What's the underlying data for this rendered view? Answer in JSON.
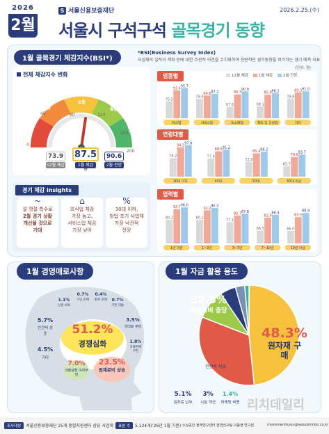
{
  "header": {
    "year": "2026",
    "month": "2월",
    "logo": "서울신용보증재단",
    "date": "2026.2.25.(수)",
    "title_a": "서울시 구석구석",
    "title_b": "골목경기 동향"
  },
  "bsi": {
    "panel_title": "1월 골목경기 체감지수(BSI*)",
    "note_title": "*BSI(Business Survey Index)",
    "note_text": "사업체의 실적과 계획 등에 대한 주관적 의견을 수치화하여 전반적인 경기동향을 파악하는 경기 예측 지표",
    "gauge_title": "전체 체감지수 변화",
    "gauge_labels": [
      "악화",
      "나쁨",
      "보통",
      "좋음",
      "매우좋음",
      "매우 나쁨"
    ],
    "ticks": [
      "0",
      "40",
      "80",
      "120",
      "160",
      "200"
    ],
    "dec_value": "73.9",
    "dec_label": "12월 체감",
    "jan_value": "87.5",
    "jan_label": "1월 체감",
    "feb_value": "90.6",
    "feb_label": "2월 전망",
    "jan_unit": "점"
  },
  "insights": {
    "title": "경기 체감 insights",
    "items": [
      {
        "icon": "~",
        "text1": "설 명절 특수로",
        "text2": "2월 경기 상황",
        "text3": "개선될 것으로",
        "text4": "기대"
      },
      {
        "icon": "⌂",
        "text1": "외식업 체감",
        "text2": "가장 높고,",
        "text3": "서비스업 체감",
        "text4": "가장 낮아"
      },
      {
        "icon": "%",
        "text1": "30대 이하,",
        "text2": "창업 초기 사업체",
        "text3": "가장 낙관적",
        "text4": "전망"
      }
    ]
  },
  "chart_data": [
    {
      "type": "bar",
      "title": "업종별",
      "ylabel": "(단위: 점)",
      "legend": [
        "12월 체감",
        "1월 체감",
        "2월 전망"
      ],
      "categories": [
        "외식업",
        "서비스업",
        "도소매업",
        "제조 및 건설업",
        "기타"
      ],
      "series": [
        {
          "name": "12월 체감",
          "values": [
            75.5,
            79.6,
            67.5,
            68.1,
            79.8
          ]
        },
        {
          "name": "1월 체감",
          "values": [
            92.4,
            84.6,
            86.3,
            85.8,
            89.3
          ]
        },
        {
          "name": "2월 전망",
          "values": [
            95.7,
            87.2,
            90.9,
            88.2,
            91.0
          ]
        }
      ]
    },
    {
      "type": "bar",
      "title": "연령대별",
      "categories": [
        "30대 이하",
        "40대",
        "50대",
        "60대 이상"
      ],
      "series": [
        {
          "name": "12월 체감",
          "values": [
            78.2,
            77.6,
            72.9,
            65.7
          ]
        },
        {
          "name": "1월 체감",
          "values": [
            94.5,
            88.6,
            85.4,
            79.9
          ]
        },
        {
          "name": "2월 전망",
          "values": [
            97.8,
            91.2,
            88.2,
            83.7
          ]
        }
      ]
    },
    {
      "type": "bar",
      "title": "업력별",
      "categories": [
        "1년 미만",
        "1~3년",
        "3~7년",
        "7~10년",
        "10년 이상"
      ],
      "series": [
        {
          "name": "12월 체감",
          "values": [
            80.2,
            80.1,
            77.1,
            66.5,
            66.0
          ]
        },
        {
          "name": "1월 체감",
          "values": [
            93.7,
            92.2,
            85.7,
            82.9,
            83.5
          ]
        },
        {
          "name": "2월 전망",
          "values": [
            96.0,
            95.3,
            87.8,
            86.4,
            88.9
          ]
        }
      ]
    },
    {
      "type": "pie",
      "title": "1월 자금 활용 용도",
      "categories": [
        "원자재 구매",
        "운영경비 충당",
        "인건비 지급",
        "임차료 납부",
        "시설 개선",
        "마케팅 비용"
      ],
      "values": [
        48.3,
        32.5,
        9.6,
        5.1,
        3.0,
        1.4
      ]
    }
  ],
  "difficulty": {
    "title": "1월 경영애로사항",
    "items": [
      {
        "pct": "51.2%",
        "label": "경쟁심화"
      },
      {
        "pct": "23.5%",
        "label": "원재료비 상승"
      },
      {
        "pct": "7.0%",
        "label": "대출상환 이자부담"
      },
      {
        "pct": "5.7%",
        "label": "인건비 상승"
      },
      {
        "pct": "4.5%",
        "label": "기타"
      },
      {
        "pct": "3.5%",
        "label": "임대료 부담"
      },
      {
        "pct": "1.8%",
        "label": "유료판매 부진"
      },
      {
        "pct": "1.1%",
        "label": "상권 쇠퇴"
      },
      {
        "pct": "0.7%",
        "label": "구인 문제"
      },
      {
        "pct": "0.4%",
        "label": "판로 문제"
      },
      {
        "pct": "0.7%",
        "label": "기존 대출"
      }
    ]
  },
  "funds": {
    "title": "1월 자금 활용 용도"
  },
  "footer": {
    "tag1": "조사대상",
    "text1": "서울신용보증재단 25개 종합지원센터 상담 사업체",
    "tag2": "표본 수",
    "text2": "5,124개('26년 1월 기준)",
    "text3": "소상공인 정책연구센터 현연언구팀 이동현 연구원",
    "text4": "movementhyun@seoulshinbo.co.kr"
  },
  "watermark": "리치데일리"
}
